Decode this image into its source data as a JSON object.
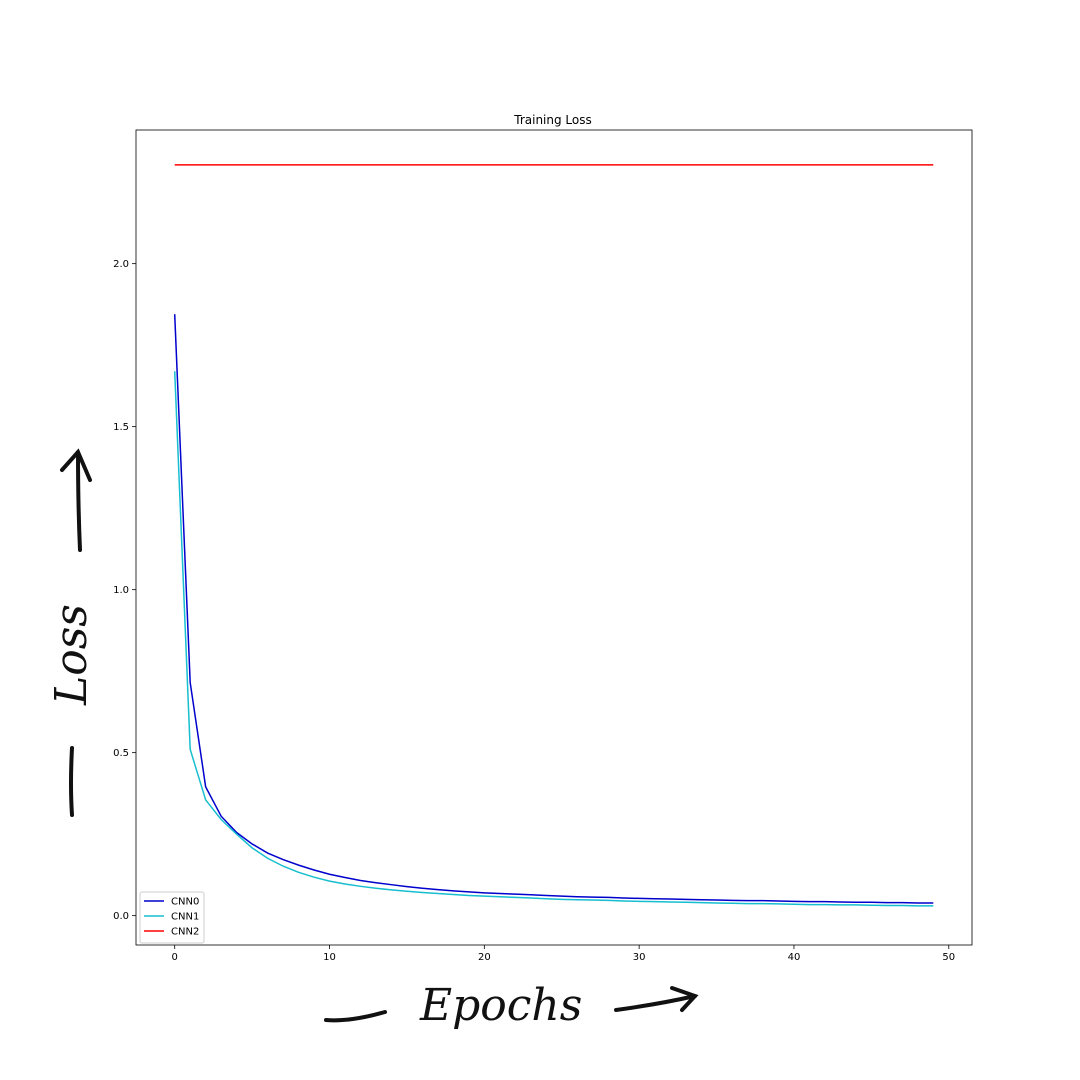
{
  "chart_data": {
    "type": "line",
    "title": "Training Loss",
    "xlabel": "Epochs",
    "ylabel": "Loss",
    "xlim": [
      -2.5,
      51.5
    ],
    "ylim": [
      -0.09,
      2.41
    ],
    "xticks": [
      0,
      10,
      20,
      30,
      40,
      50
    ],
    "yticks": [
      0.0,
      0.5,
      1.0,
      1.5,
      2.0
    ],
    "ytick_labels": [
      "0.0",
      "0.5",
      "1.0",
      "1.5",
      "2.0"
    ],
    "xtick_labels": [
      "0",
      "10",
      "20",
      "30",
      "40",
      "50"
    ],
    "grid": false,
    "legend_position": "lower-left",
    "x": [
      0,
      1,
      2,
      3,
      4,
      5,
      6,
      7,
      8,
      9,
      10,
      11,
      12,
      13,
      14,
      15,
      16,
      17,
      18,
      19,
      20,
      21,
      22,
      23,
      24,
      25,
      26,
      27,
      28,
      29,
      30,
      31,
      32,
      33,
      34,
      35,
      36,
      37,
      38,
      39,
      40,
      41,
      42,
      43,
      44,
      45,
      46,
      47,
      48,
      49
    ],
    "series": [
      {
        "name": "CNN0",
        "color": "#0000cc",
        "values": [
          1.845,
          0.715,
          0.395,
          0.305,
          0.255,
          0.22,
          0.192,
          0.172,
          0.155,
          0.14,
          0.127,
          0.117,
          0.108,
          0.101,
          0.095,
          0.089,
          0.084,
          0.08,
          0.076,
          0.073,
          0.07,
          0.068,
          0.066,
          0.064,
          0.062,
          0.06,
          0.058,
          0.057,
          0.056,
          0.054,
          0.053,
          0.052,
          0.051,
          0.05,
          0.049,
          0.048,
          0.047,
          0.046,
          0.046,
          0.045,
          0.044,
          0.043,
          0.043,
          0.042,
          0.041,
          0.041,
          0.04,
          0.04,
          0.039,
          0.039
        ]
      },
      {
        "name": "CNN1",
        "color": "#17becf",
        "values": [
          1.67,
          0.51,
          0.355,
          0.295,
          0.25,
          0.208,
          0.176,
          0.152,
          0.133,
          0.118,
          0.106,
          0.097,
          0.09,
          0.084,
          0.079,
          0.075,
          0.071,
          0.068,
          0.065,
          0.062,
          0.06,
          0.058,
          0.056,
          0.054,
          0.052,
          0.05,
          0.049,
          0.048,
          0.047,
          0.045,
          0.044,
          0.043,
          0.042,
          0.041,
          0.04,
          0.039,
          0.038,
          0.037,
          0.037,
          0.036,
          0.035,
          0.034,
          0.034,
          0.033,
          0.033,
          0.032,
          0.031,
          0.031,
          0.03,
          0.03
        ]
      },
      {
        "name": "CNN2",
        "color": "#ff0000",
        "values": [
          2.303,
          2.303,
          2.303,
          2.303,
          2.303,
          2.303,
          2.303,
          2.303,
          2.303,
          2.303,
          2.303,
          2.303,
          2.303,
          2.303,
          2.303,
          2.303,
          2.303,
          2.303,
          2.303,
          2.303,
          2.303,
          2.303,
          2.303,
          2.303,
          2.303,
          2.303,
          2.303,
          2.303,
          2.303,
          2.303,
          2.303,
          2.303,
          2.303,
          2.303,
          2.303,
          2.303,
          2.303,
          2.303,
          2.303,
          2.303,
          2.303,
          2.303,
          2.303,
          2.303,
          2.303,
          2.303,
          2.303,
          2.303,
          2.303,
          2.303
        ]
      }
    ]
  },
  "annotations": {
    "x_hand": "Epochs",
    "y_hand": "Loss"
  }
}
